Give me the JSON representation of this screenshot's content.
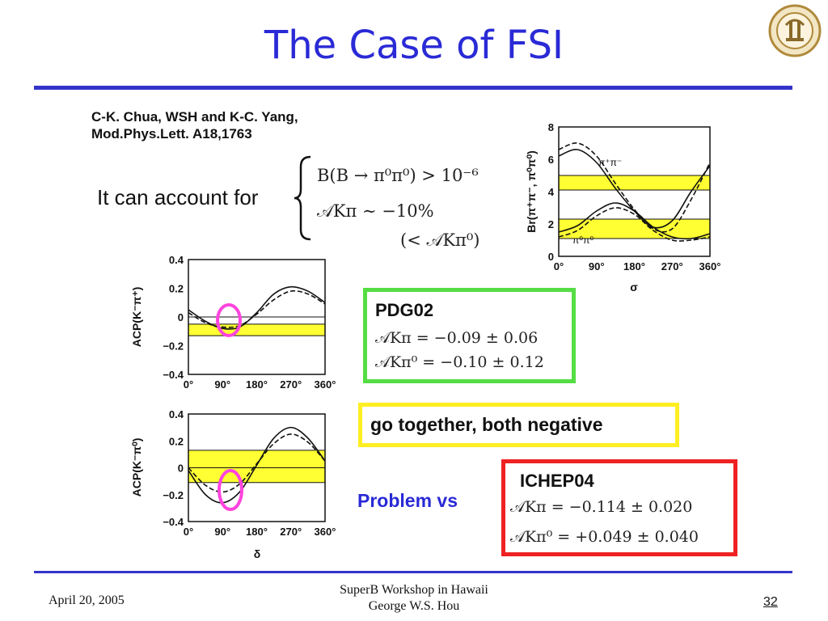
{
  "slide": {
    "title": "The Case of FSI",
    "reference_line1": "C-K. Chua, WSH and K-C. Yang,",
    "reference_line2": "Mod.Phys.Lett. A18,1763",
    "account_text": "It can account for",
    "eq1": "B(B → π⁰π⁰) > 10⁻⁶",
    "eq2": "𝒜Kπ ∼ −10%",
    "eq3": "(< 𝒜Kπ⁰)",
    "pdg_title": "PDG02",
    "pdg_eq1": "𝒜Kπ = −0.09 ± 0.06",
    "pdg_eq2": "𝒜Kπ⁰ = −0.10 ± 0.12",
    "together_text": "go together, both negative",
    "problem_text": "Problem vs",
    "ichep_title": "ICHEP04",
    "ichep_eq1": "𝒜Kπ = −0.114 ± 0.020",
    "ichep_eq2": "𝒜Kπ⁰ = +0.049 ± 0.040",
    "colors": {
      "title": "#2a2ad6",
      "band": "#ffff33",
      "pdg_border": "#55dd44",
      "together_border": "#ffee22",
      "ichep_border": "#ee2222",
      "circle": "#ff44dd"
    }
  },
  "footer": {
    "date": "April 20, 2005",
    "workshop": "SuperB Workshop in Hawaii",
    "author": "George W.S. Hou",
    "page": "32"
  },
  "chart_data": [
    {
      "type": "line",
      "xlabel": "σ",
      "ylabel": "Br(π⁺π⁻, π⁰π⁰)",
      "x_ticks": [
        "0°",
        "90°",
        "180°",
        "270°",
        "360°"
      ],
      "y_ticks": [
        "0",
        "2",
        "4",
        "6",
        "8"
      ],
      "xlim": [
        0,
        360
      ],
      "ylim": [
        0,
        8
      ],
      "bands": [
        [
          4.1,
          5.0
        ],
        [
          1.1,
          2.3
        ]
      ],
      "annotations": [
        "π⁺π⁻",
        "π⁰π⁰"
      ],
      "series": [
        {
          "style": "solid",
          "x": [
            0,
            45,
            90,
            135,
            180,
            225,
            270,
            315,
            360
          ],
          "y": [
            6.2,
            6.6,
            5.8,
            4.2,
            2.8,
            1.8,
            2.2,
            4.0,
            5.6
          ]
        },
        {
          "style": "dashed",
          "x": [
            0,
            45,
            90,
            135,
            180,
            225,
            270,
            315,
            360
          ],
          "y": [
            6.6,
            7.0,
            6.2,
            4.5,
            2.9,
            1.7,
            1.7,
            3.5,
            5.8
          ]
        },
        {
          "style": "solid",
          "x": [
            0,
            45,
            90,
            135,
            180,
            225,
            270,
            315,
            360
          ],
          "y": [
            1.5,
            1.9,
            2.8,
            3.3,
            2.8,
            1.8,
            1.2,
            1.1,
            1.4
          ]
        },
        {
          "style": "dashed",
          "x": [
            0,
            45,
            90,
            135,
            180,
            225,
            270,
            315,
            360
          ],
          "y": [
            1.2,
            1.6,
            2.5,
            3.0,
            2.6,
            1.6,
            1.0,
            1.0,
            1.2
          ]
        }
      ]
    },
    {
      "type": "line",
      "xlabel": "",
      "ylabel": "ACP(K⁻π⁺)",
      "x_ticks": [
        "0°",
        "90°",
        "180°",
        "270°",
        "360°"
      ],
      "y_ticks": [
        "0.4",
        "0.2",
        "0",
        "−0.2",
        "−0.4"
      ],
      "xlim": [
        0,
        360
      ],
      "ylim": [
        -0.4,
        0.4
      ],
      "bands": [
        [
          -0.13,
          -0.05
        ]
      ],
      "hlines": [
        0
      ],
      "series": [
        {
          "style": "solid",
          "x": [
            0,
            45,
            90,
            135,
            180,
            225,
            270,
            315,
            360
          ],
          "y": [
            0.05,
            -0.03,
            -0.08,
            -0.07,
            0.03,
            0.16,
            0.21,
            0.18,
            0.1
          ]
        },
        {
          "style": "dashed",
          "x": [
            0,
            45,
            90,
            135,
            180,
            225,
            270,
            315,
            360
          ],
          "y": [
            0.03,
            -0.04,
            -0.07,
            -0.06,
            0.02,
            0.12,
            0.18,
            0.16,
            0.09
          ]
        }
      ]
    },
    {
      "type": "line",
      "xlabel": "δ",
      "ylabel": "ACP(K⁻π⁰)",
      "x_ticks": [
        "0°",
        "90°",
        "180°",
        "270°",
        "360°"
      ],
      "y_ticks": [
        "0.4",
        "0.2",
        "0",
        "−0.2",
        "−0.4"
      ],
      "xlim": [
        0,
        360
      ],
      "ylim": [
        -0.4,
        0.4
      ],
      "bands": [
        [
          -0.11,
          0.13
        ]
      ],
      "hlines": [
        0
      ],
      "series": [
        {
          "style": "solid",
          "x": [
            0,
            45,
            90,
            135,
            180,
            225,
            270,
            315,
            360
          ],
          "y": [
            -0.02,
            -0.2,
            -0.26,
            -0.18,
            0.02,
            0.22,
            0.3,
            0.22,
            0.05
          ]
        },
        {
          "style": "dashed",
          "x": [
            0,
            45,
            90,
            135,
            180,
            225,
            270,
            315,
            360
          ],
          "y": [
            0.0,
            -0.13,
            -0.18,
            -0.12,
            0.03,
            0.18,
            0.25,
            0.19,
            0.05
          ]
        }
      ]
    }
  ]
}
